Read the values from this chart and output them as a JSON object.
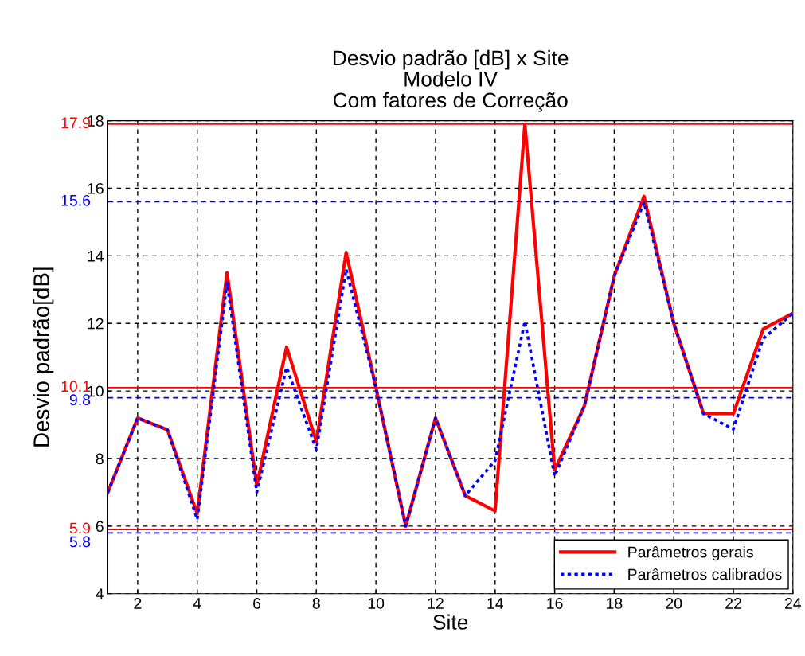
{
  "chart_data": {
    "type": "line",
    "title": "Desvio padrão [dB] x Site\nModelo IV\nCom fatores de Correção",
    "xlabel": "Site",
    "ylabel": "Desvio padrão[dB]",
    "x": [
      1,
      2,
      3,
      4,
      5,
      6,
      7,
      8,
      9,
      10,
      11,
      12,
      13,
      14,
      15,
      16,
      17,
      18,
      19,
      20,
      21,
      22,
      23,
      24
    ],
    "series": [
      {
        "name": "Parâmetros gerais",
        "color": "#ff0000",
        "line_style": "solid",
        "values": [
          7.0,
          9.2,
          8.85,
          6.37,
          13.5,
          7.2,
          11.3,
          8.5,
          14.1,
          10.1,
          6.0,
          9.2,
          6.9,
          6.45,
          17.9,
          7.66,
          9.56,
          13.4,
          15.76,
          12.0,
          9.33,
          9.33,
          11.83,
          12.3
        ]
      },
      {
        "name": "Parâmetros calibrados",
        "color": "#0000ff",
        "line_style": "dotted",
        "values": [
          7.0,
          9.2,
          8.85,
          6.2,
          13.2,
          7.0,
          10.7,
          8.26,
          13.6,
          10.1,
          6.0,
          9.2,
          6.9,
          7.94,
          12.06,
          7.48,
          9.56,
          13.4,
          15.58,
          12.0,
          9.33,
          8.87,
          11.55,
          12.3
        ]
      }
    ],
    "xlim": [
      1,
      24
    ],
    "xticks": [
      2,
      4,
      6,
      8,
      10,
      12,
      14,
      16,
      18,
      20,
      22,
      24
    ],
    "ylim": [
      4,
      18
    ],
    "yticks": [
      4,
      6,
      8,
      10,
      12,
      14,
      16,
      18
    ],
    "ref_lines": [
      {
        "axis": "y",
        "value": 17.9,
        "label": "17.9",
        "color": "#ff0000",
        "line_style": "solid"
      },
      {
        "axis": "y",
        "value": 10.1,
        "label": "10.1",
        "color": "#ff0000",
        "line_style": "solid"
      },
      {
        "axis": "y",
        "value": 5.9,
        "label": "5.9",
        "color": "#ff0000",
        "line_style": "solid"
      },
      {
        "axis": "y",
        "value": 15.6,
        "label": "15.6",
        "color": "#0000ff",
        "line_style": "dashed"
      },
      {
        "axis": "y",
        "value": 9.8,
        "label": "9.8",
        "color": "#0000ff",
        "line_style": "dashed"
      },
      {
        "axis": "y",
        "value": 5.8,
        "label": "5.8",
        "color": "#0000ff",
        "line_style": "dashed"
      }
    ],
    "grid": true,
    "legend": "bottom right"
  }
}
